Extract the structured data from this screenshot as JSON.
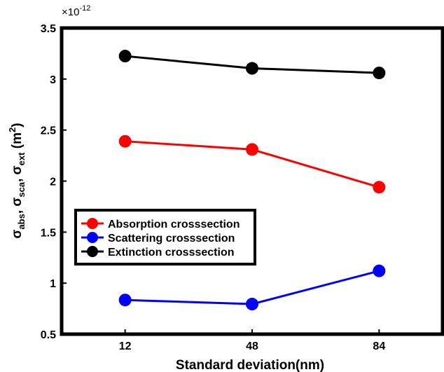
{
  "chart_data": {
    "type": "line",
    "title": "",
    "xlabel": "Standard deviation(nm)",
    "ylabel": "σabs, σsca, σext (m2)",
    "y_multiplier_label": "×10",
    "y_multiplier_exponent": "-12",
    "categories": [
      "12",
      "48",
      "84"
    ],
    "yticks": [
      "0.5",
      "1",
      "1.5",
      "2",
      "2.5",
      "3",
      "3.5"
    ],
    "ylim": [
      0.5,
      3.5
    ],
    "legend_position": "left",
    "series": [
      {
        "name": "Absorption crosssection",
        "color": "#ff0000",
        "values": [
          2.39,
          2.31,
          1.94
        ]
      },
      {
        "name": "Scattering crosssection",
        "color": "#0000ff",
        "values": [
          0.835,
          0.795,
          1.12
        ]
      },
      {
        "name": "Extinction crosssection",
        "color": "#000000",
        "values": [
          3.225,
          3.105,
          3.06
        ]
      }
    ]
  }
}
